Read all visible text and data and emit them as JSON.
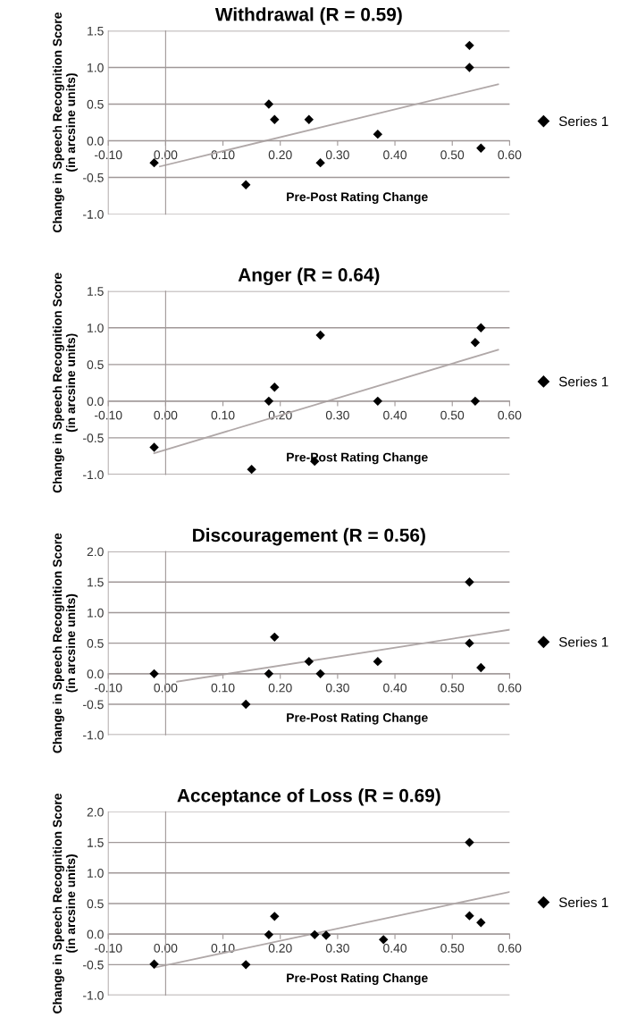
{
  "chart_data": [
    {
      "type": "scatter",
      "title": "Withdrawal (R = 0.59)",
      "xlabel": "Pre-Post Rating Change",
      "ylabel": "Change in Speech Recognition Score\n(in arcsine units)",
      "xlim": [
        -0.1,
        0.6
      ],
      "xticks": [
        {
          "value": -0.1,
          "label": "-0.10"
        },
        {
          "value": 0,
          "label": "0.00"
        },
        {
          "value": 0.1,
          "label": "0.10"
        },
        {
          "value": 0.2,
          "label": "0.20"
        },
        {
          "value": 0.3,
          "label": "0.30"
        },
        {
          "value": 0.4,
          "label": "0.40"
        },
        {
          "value": 0.5,
          "label": "0.50"
        },
        {
          "value": 0.6,
          "label": "0.60"
        }
      ],
      "ylim": [
        -1.0,
        1.5
      ],
      "yticks": [
        {
          "value": -1.0,
          "label": "-1.0"
        },
        {
          "value": -0.5,
          "label": "-0.5"
        },
        {
          "value": 0,
          "label": "0.0"
        },
        {
          "value": 0.5,
          "label": "0.5"
        },
        {
          "value": 1.0,
          "label": "1.0"
        },
        {
          "value": 1.5,
          "label": "1.5"
        }
      ],
      "grid": "y",
      "legend": "right",
      "series": [
        {
          "name": "Series 1",
          "color": "#000000",
          "marker": "diamond",
          "x": [
            0.53,
            0.53,
            0.55,
            0.37,
            0.27,
            0.25,
            0.19,
            0.18,
            0.14,
            -0.02
          ],
          "values": [
            1.3,
            1.0,
            -0.1,
            0.09,
            -0.3,
            0.29,
            0.29,
            0.5,
            -0.6,
            -0.3
          ]
        },
        {
          "type": "line",
          "color": "#b0a8a8",
          "x": [
            -0.01,
            0.58
          ],
          "values": [
            -0.35,
            0.77
          ]
        }
      ]
    },
    {
      "type": "scatter",
      "title": "Anger (R = 0.64)",
      "xlabel": "Pre-Post Rating Change",
      "ylabel": "Change in Speech Recognition Score\n(in arcsine units)",
      "xlim": [
        -0.1,
        0.6
      ],
      "xticks": [
        {
          "value": -0.1,
          "label": "-0.10"
        },
        {
          "value": 0,
          "label": "0.00"
        },
        {
          "value": 0.1,
          "label": "0.10"
        },
        {
          "value": 0.2,
          "label": "0.20"
        },
        {
          "value": 0.3,
          "label": "0.30"
        },
        {
          "value": 0.4,
          "label": "0.40"
        },
        {
          "value": 0.5,
          "label": "0.50"
        },
        {
          "value": 0.6,
          "label": "0.60"
        }
      ],
      "ylim": [
        -1.0,
        1.5
      ],
      "yticks": [
        {
          "value": -1.0,
          "label": "-1.0"
        },
        {
          "value": -0.5,
          "label": "-0.5"
        },
        {
          "value": 0,
          "label": "0.0"
        },
        {
          "value": 0.5,
          "label": "0.5"
        },
        {
          "value": 1.0,
          "label": "1.0"
        },
        {
          "value": 1.5,
          "label": "1.5"
        }
      ],
      "grid": "y",
      "legend": "right",
      "series": [
        {
          "name": "Series 1",
          "color": "#000000",
          "marker": "diamond",
          "x": [
            0.55,
            0.54,
            0.54,
            0.27,
            0.37,
            0.26,
            0.19,
            0.18,
            0.15,
            -0.02
          ],
          "values": [
            1.0,
            0.8,
            0.0,
            0.9,
            0.0,
            -0.82,
            0.19,
            0.0,
            -0.93,
            -0.63
          ]
        },
        {
          "type": "line",
          "color": "#b0a8a8",
          "x": [
            -0.02,
            0.58
          ],
          "values": [
            -0.71,
            0.7
          ]
        }
      ]
    },
    {
      "type": "scatter",
      "title": "Discouragement (R = 0.56)",
      "xlabel": "Pre-Post Rating Change",
      "ylabel": "Change in Speech Recognition Score\n(in arcsine units)",
      "xlim": [
        -0.1,
        0.6
      ],
      "xticks": [
        {
          "value": -0.1,
          "label": "-0.10"
        },
        {
          "value": 0,
          "label": "0.00"
        },
        {
          "value": 0.1,
          "label": "0.10"
        },
        {
          "value": 0.2,
          "label": "0.20"
        },
        {
          "value": 0.3,
          "label": "0.30"
        },
        {
          "value": 0.4,
          "label": "0.40"
        },
        {
          "value": 0.5,
          "label": "0.50"
        },
        {
          "value": 0.6,
          "label": "0.60"
        }
      ],
      "ylim": [
        -1.0,
        2.0
      ],
      "yticks": [
        {
          "value": -1.0,
          "label": "-1.0"
        },
        {
          "value": -0.5,
          "label": "-0.5"
        },
        {
          "value": 0,
          "label": "0.0"
        },
        {
          "value": 0.5,
          "label": "0.5"
        },
        {
          "value": 1.0,
          "label": "1.0"
        },
        {
          "value": 1.5,
          "label": "1.5"
        },
        {
          "value": 2.0,
          "label": "2.0"
        }
      ],
      "grid": "y",
      "legend": "right",
      "series": [
        {
          "name": "Series 1",
          "color": "#000000",
          "marker": "diamond",
          "x": [
            0.53,
            0.53,
            0.55,
            0.37,
            0.27,
            0.25,
            0.19,
            0.18,
            0.14,
            -0.02
          ],
          "values": [
            1.5,
            0.5,
            0.1,
            0.2,
            0.0,
            0.2,
            0.6,
            0.0,
            -0.5,
            0.0
          ]
        },
        {
          "type": "line",
          "color": "#b0a8a8",
          "x": [
            0.02,
            0.6
          ],
          "values": [
            -0.13,
            0.72
          ]
        }
      ]
    },
    {
      "type": "scatter",
      "title": "Acceptance of Loss (R = 0.69)",
      "xlabel": "Pre-Post Rating Change",
      "ylabel": "Change in Speech Recognition Score\n(in arcsine units)",
      "xlim": [
        -0.1,
        0.6
      ],
      "xticks": [
        {
          "value": -0.1,
          "label": "-0.10"
        },
        {
          "value": 0,
          "label": "0.00"
        },
        {
          "value": 0.1,
          "label": "0.10"
        },
        {
          "value": 0.2,
          "label": "0.20"
        },
        {
          "value": 0.3,
          "label": "0.30"
        },
        {
          "value": 0.4,
          "label": "0.40"
        },
        {
          "value": 0.5,
          "label": "0.50"
        },
        {
          "value": 0.6,
          "label": "0.60"
        }
      ],
      "ylim": [
        -1.0,
        2.0
      ],
      "yticks": [
        {
          "value": -1.0,
          "label": "-1.0"
        },
        {
          "value": -0.5,
          "label": "-0.5"
        },
        {
          "value": 0,
          "label": "0.0"
        },
        {
          "value": 0.5,
          "label": "0.5"
        },
        {
          "value": 1.0,
          "label": "1.0"
        },
        {
          "value": 1.5,
          "label": "1.5"
        },
        {
          "value": 2.0,
          "label": "2.0"
        }
      ],
      "grid": "y",
      "legend": "right",
      "series": [
        {
          "name": "Series 1",
          "color": "#000000",
          "marker": "diamond",
          "x": [
            0.53,
            0.53,
            0.55,
            0.38,
            0.28,
            0.26,
            0.19,
            0.18,
            0.14,
            -0.02
          ],
          "values": [
            1.5,
            0.3,
            0.19,
            -0.09,
            -0.02,
            -0.01,
            0.29,
            -0.01,
            -0.5,
            -0.49
          ]
        },
        {
          "type": "line",
          "color": "#b0a8a8",
          "x": [
            -0.02,
            0.6
          ],
          "values": [
            -0.55,
            0.69
          ]
        }
      ]
    }
  ]
}
